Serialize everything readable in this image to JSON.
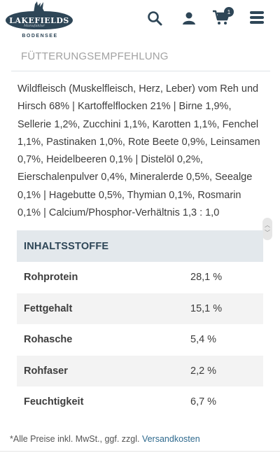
{
  "header": {
    "logo_text": "LAKEFIELDS",
    "logo_tagline": "Manufaktur",
    "logo_sub": "BODENSEE",
    "cart_count": "1",
    "icons": [
      "search-icon",
      "user-icon",
      "cart-icon",
      "menu-icon"
    ]
  },
  "section": {
    "title": "FÜTTERUNGSEMPFEHLUNG",
    "composition": "Wildfleisch (Muskelfleisch, Herz, Leber) vom Reh und Hirsch 68% |  Kartoffelflocken 21% | Birne 1,9%, Sellerie 1,2%, Zucchini 1,1%, Karotten 1,1%, Fenchel 1,1%, Pastinaken 1,0%, Rote Beete 0,9%, Leinsamen 0,7%, Heidelbeeren 0,1% | Distelöl 0,2%, Eierschalenpulver 0,4%, Mineralerde 0,5%, Seealge 0,1% | Hagebutte 0,5%, Thymian 0,1%, Rosmarin 0,1% | Calcium/Phosphor-Verhältnis 1,3 : 1,0"
  },
  "table": {
    "header": "INHALTSSTOFFE",
    "rows": [
      {
        "name": "Rohprotein",
        "value": "28,1 %"
      },
      {
        "name": "Fettgehalt",
        "value": "15,1 %"
      },
      {
        "name": "Rohasche",
        "value": "5,4 %"
      },
      {
        "name": "Rohfaser",
        "value": "2,2 %"
      },
      {
        "name": "Feuchtigkeit",
        "value": "6,7 %"
      }
    ]
  },
  "footer": {
    "note": "*Alle Preise inkl. MwSt., ggf. zzgl. ",
    "link": "Versandkosten"
  },
  "colors": {
    "brand": "#2e4657",
    "table_header_bg": "#e3e8ec",
    "row_alt_bg": "#f3f3f3",
    "link": "#2f6a8e"
  }
}
